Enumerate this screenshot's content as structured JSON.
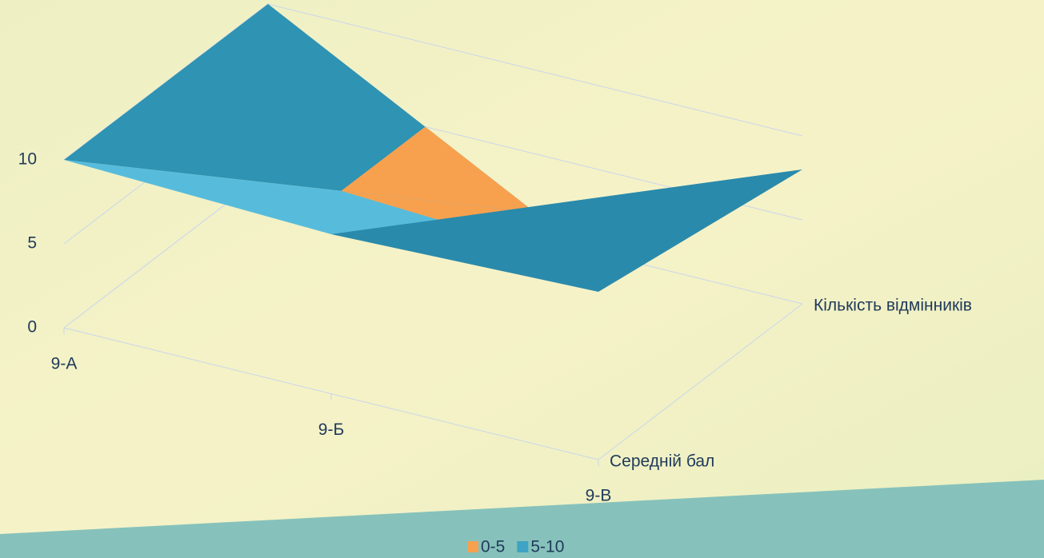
{
  "chart_data": {
    "type": "surface",
    "categories": [
      "9-А",
      "9-Б",
      "9-В"
    ],
    "series": [
      {
        "name": "Середній бал",
        "values": [
          10,
          9.5,
          10
        ]
      },
      {
        "name": "Кількість відмінників",
        "values": [
          10,
          1.5,
          8
        ]
      }
    ],
    "zlim": [
      0,
      10
    ],
    "zticks": [
      0,
      5,
      10
    ],
    "bands": [
      {
        "name": "0-5",
        "color": "#f7a14f"
      },
      {
        "name": "5-10",
        "color": "#3ea3c4"
      }
    ],
    "grid": true,
    "legend": "bottom"
  }
}
